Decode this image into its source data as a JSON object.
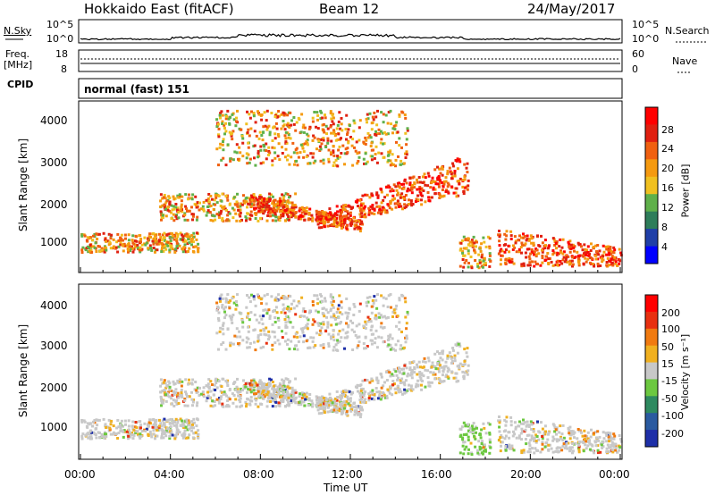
{
  "header": {
    "station": "Hokkaido East (fitACF)",
    "beam": "Beam 12",
    "date": "24/May/2017"
  },
  "noise_panel": {
    "left_label": "N.Sky",
    "right_label": "N.Search",
    "left_ticks": [
      "10^5",
      "10^0"
    ],
    "right_ticks": [
      "10^5",
      "10^0"
    ]
  },
  "freq_panel": {
    "left_label_1": "Freq.",
    "left_label_2": "[MHz]",
    "left_ticks": [
      "18",
      "8"
    ],
    "right_label": "Nave",
    "right_ticks": [
      "60",
      "0"
    ]
  },
  "cpid_panel": {
    "label": "CPID",
    "program": "normal (fast) 151"
  },
  "power_panel": {
    "ylabel": "Slant Range [km]",
    "yticks": [
      "4000",
      "3000",
      "2000",
      "1000"
    ],
    "colorbar_label": "Power [dB]",
    "colorbar_ticks": [
      "28",
      "24",
      "20",
      "16",
      "12",
      "8",
      "4"
    ],
    "colors": [
      "#0000ff",
      "#1f3fa8",
      "#2e7d5a",
      "#5fb04a",
      "#f0c020",
      "#f59a10",
      "#f06010",
      "#e02010",
      "#ff0000"
    ]
  },
  "velocity_panel": {
    "ylabel": "Slant Range [km]",
    "yticks": [
      "4000",
      "3000",
      "2000",
      "1000"
    ],
    "colorbar_label": "Velocity [m s⁻¹]",
    "colorbar_ticks": [
      "200",
      "100",
      "50",
      "15",
      "-15",
      "-50",
      "-100",
      "-200"
    ],
    "colors": [
      "#1e2fa8",
      "#2a5aa0",
      "#2e8a60",
      "#6cc840",
      "#c8c8c8",
      "#f0b020",
      "#f07a10",
      "#e83010",
      "#ff0000"
    ]
  },
  "x_axis": {
    "label": "Time UT",
    "ticks": [
      "00:00",
      "04:00",
      "08:00",
      "12:00",
      "16:00",
      "20:00",
      "00:00"
    ]
  },
  "chart_data": {
    "type": "heatmap",
    "x_range_hours": [
      0,
      24
    ],
    "y_range_km": [
      180,
      4500
    ],
    "bands": [
      {
        "name": "evening-low",
        "x0": 0.0,
        "x1": 5.2,
        "r0": 700,
        "r1": 1200
      },
      {
        "name": "morning-arc",
        "x0": 3.5,
        "x1": 9.5,
        "r0": 1500,
        "r1": 2200
      },
      {
        "name": "noon-descending",
        "x0": 7.5,
        "x1": 12.5,
        "r0": 1200,
        "r1": 2200
      },
      {
        "name": "afternoon-rise",
        "x0": 10.5,
        "x1": 17.2,
        "r0": 1300,
        "r1": 3200
      },
      {
        "name": "near-range-17h",
        "x0": 16.8,
        "x1": 18.2,
        "r0": 300,
        "r1": 1100
      },
      {
        "name": "evening-right",
        "x0": 18.5,
        "x1": 24.0,
        "r0": 350,
        "r1": 1300
      },
      {
        "name": "high-range-patches",
        "x0": 6.0,
        "x1": 14.5,
        "r0": 2900,
        "r1": 4300
      }
    ]
  }
}
